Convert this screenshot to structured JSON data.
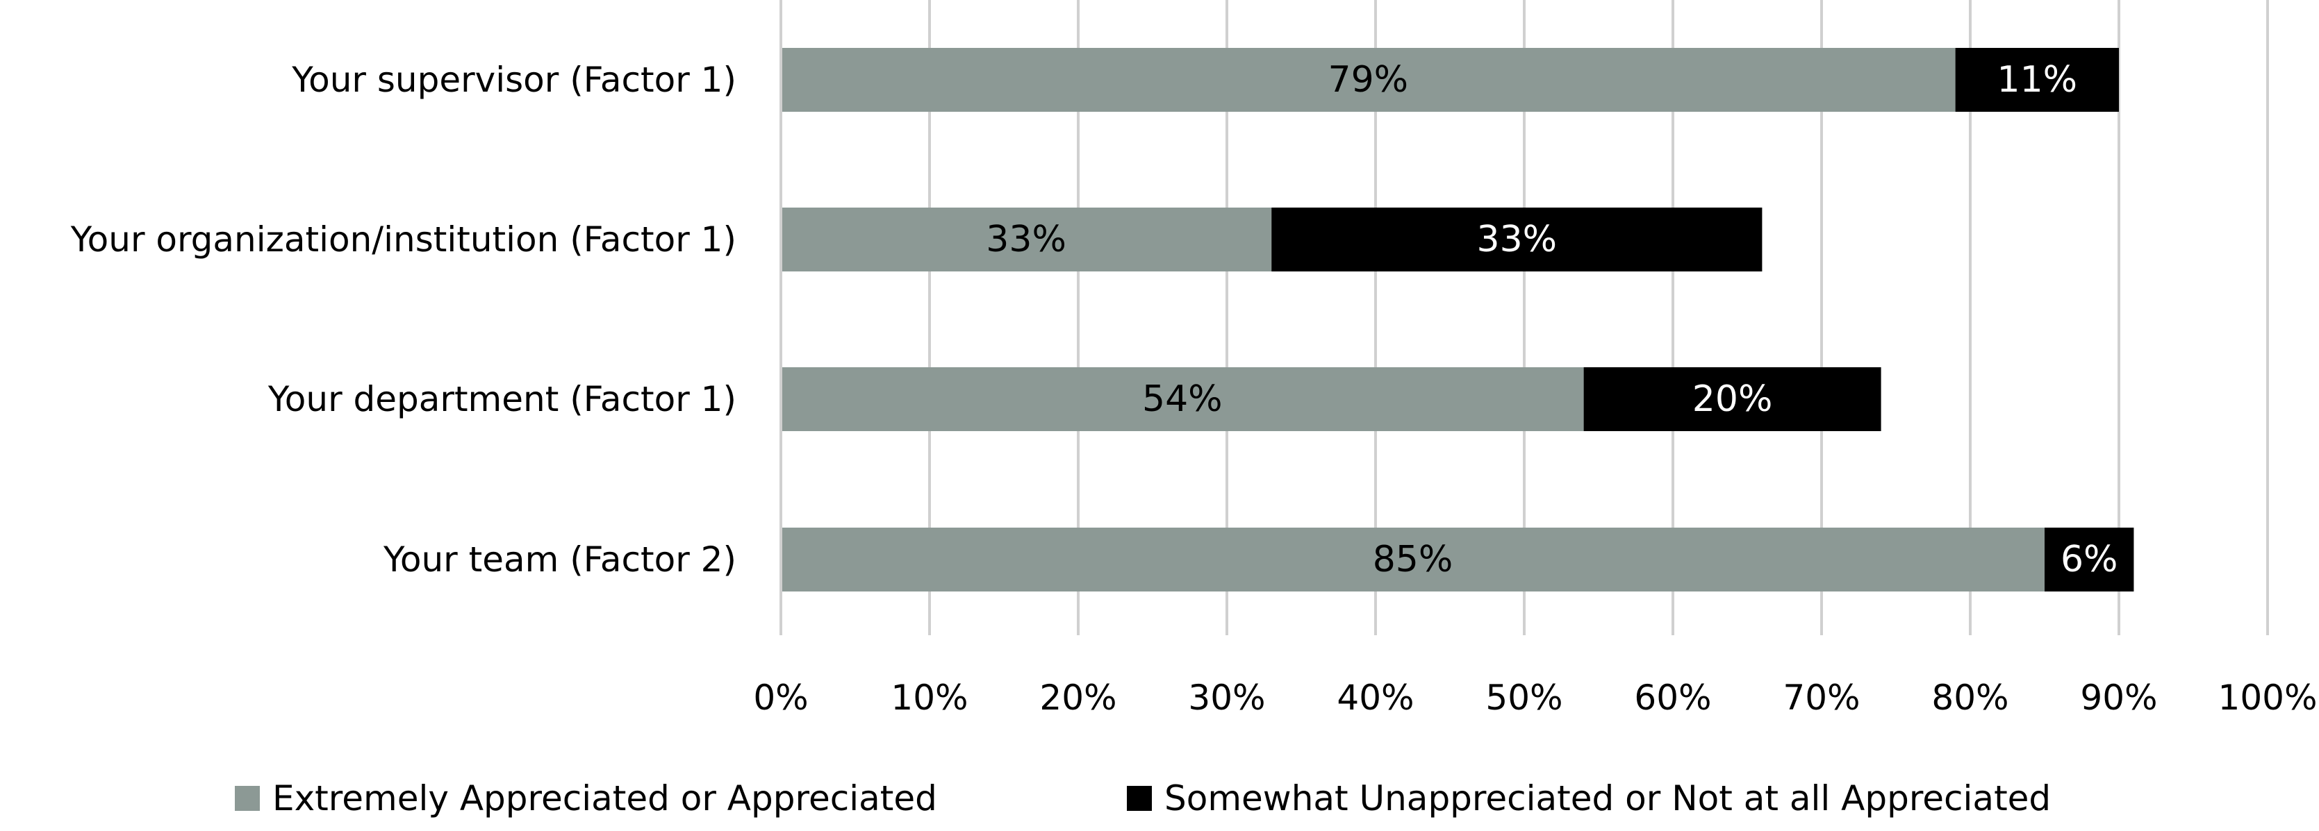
{
  "chart_data": {
    "type": "bar",
    "orientation": "horizontal",
    "stacked": true,
    "categories": [
      "Your supervisor (Factor 1)",
      "Your organization/institution (Factor 1)",
      "Your department (Factor 1)",
      "Your team (Factor 2)"
    ],
    "series": [
      {
        "name": "Extremely Appreciated or Appreciated",
        "color": "#8c9995",
        "label_color": "#000000",
        "values": [
          79,
          33,
          54,
          85
        ],
        "labels": [
          "79%",
          "33%",
          "54%",
          "85%"
        ]
      },
      {
        "name": "Somewhat Unappreciated or Not at all Appreciated",
        "color": "#000000",
        "label_color": "#ffffff",
        "values": [
          11,
          33,
          20,
          6
        ],
        "labels": [
          "11%",
          "33%",
          "20%",
          "6%"
        ]
      }
    ],
    "x_ticks": [
      0,
      10,
      20,
      30,
      40,
      50,
      60,
      70,
      80,
      90,
      100
    ],
    "x_tick_labels": [
      "0%",
      "10%",
      "20%",
      "30%",
      "40%",
      "50%",
      "60%",
      "70%",
      "80%",
      "90%",
      "100%"
    ],
    "xlim": [
      0,
      100
    ],
    "title": "",
    "xlabel": "",
    "ylabel": "",
    "grid": "vertical",
    "grid_color": "#d0d0d0",
    "legend_position": "bottom"
  }
}
